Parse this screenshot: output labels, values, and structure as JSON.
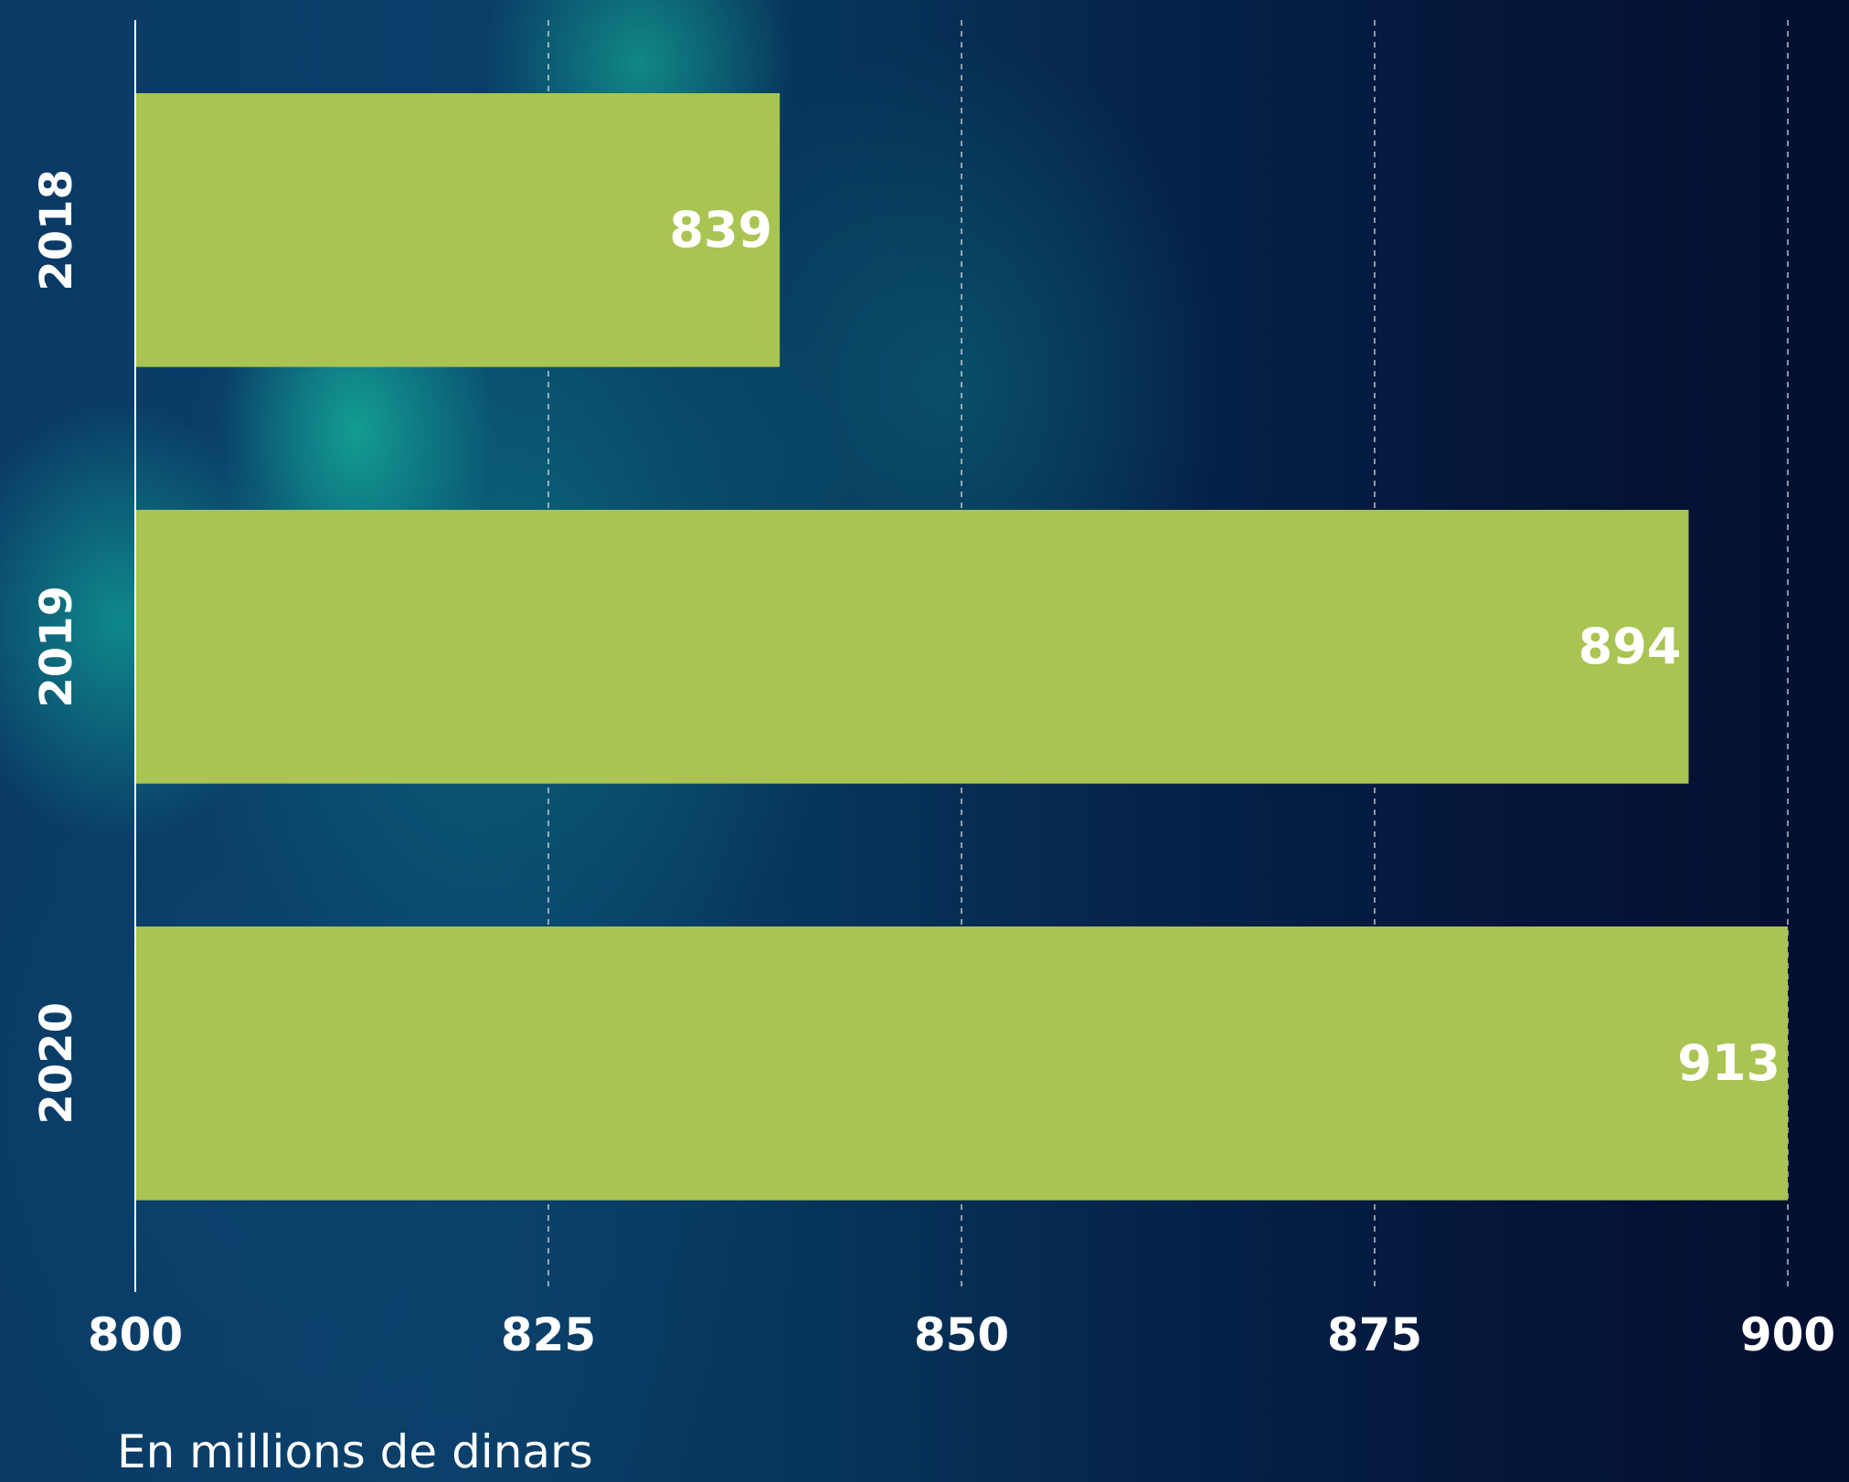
{
  "chart_data": {
    "type": "bar",
    "orientation": "horizontal",
    "categories": [
      "2018",
      "2019",
      "2020"
    ],
    "values": [
      839,
      894,
      913
    ],
    "data_labels": [
      "839",
      "894",
      "913"
    ],
    "xlim": [
      800,
      900
    ],
    "x_ticks": [
      800,
      825,
      850,
      875,
      900
    ],
    "x_tick_labels": [
      "800",
      "825",
      "850",
      "875",
      "900"
    ],
    "xlabel": "En millions de dinars",
    "grid": "vertical-dashed",
    "bar_color": "#a9c452",
    "text_color": "#ffffff"
  }
}
